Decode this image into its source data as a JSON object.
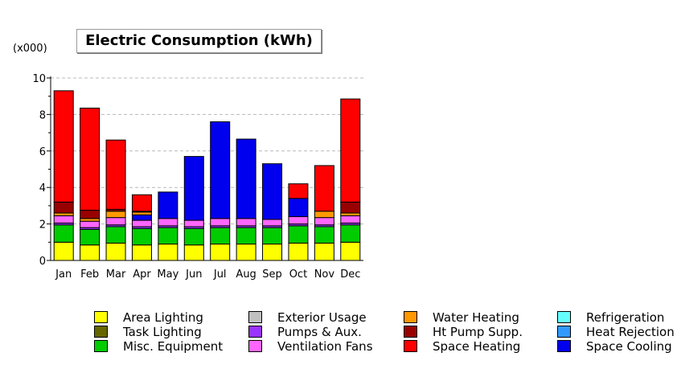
{
  "chart_data": {
    "type": "bar",
    "stacked": true,
    "title": "Electric Consumption (kWh)",
    "unit_label": "(x000)",
    "categories": [
      "Jan",
      "Feb",
      "Mar",
      "Apr",
      "May",
      "Jun",
      "Jul",
      "Aug",
      "Sep",
      "Oct",
      "Nov",
      "Dec"
    ],
    "ylim": [
      0,
      10
    ],
    "yticks": [
      "0",
      "2",
      "4",
      "6",
      "8",
      "10"
    ],
    "grid": "horizontal dashed",
    "legend_position": "bottom",
    "series": [
      {
        "name": "Area Lighting",
        "color": "#ffff00",
        "values": [
          1.0,
          0.85,
          0.95,
          0.85,
          0.9,
          0.85,
          0.9,
          0.9,
          0.9,
          0.95,
          0.95,
          1.0
        ]
      },
      {
        "name": "Task Lighting",
        "color": "#666600",
        "values": [
          0,
          0,
          0,
          0,
          0,
          0,
          0,
          0,
          0,
          0,
          0,
          0
        ]
      },
      {
        "name": "Misc. Equipment",
        "color": "#00cc00",
        "values": [
          0.95,
          0.85,
          0.9,
          0.9,
          0.9,
          0.9,
          0.9,
          0.9,
          0.9,
          0.95,
          0.9,
          0.95
        ]
      },
      {
        "name": "Exterior Usage",
        "color": "#c0c0c0",
        "values": [
          0,
          0,
          0,
          0,
          0,
          0,
          0,
          0,
          0,
          0,
          0,
          0
        ]
      },
      {
        "name": "Pumps & Aux.",
        "color": "#9933ff",
        "values": [
          0.1,
          0.1,
          0.1,
          0.1,
          0.1,
          0.1,
          0.1,
          0.1,
          0.1,
          0.1,
          0.1,
          0.1
        ]
      },
      {
        "name": "Ventilation Fans",
        "color": "#ff66ff",
        "values": [
          0.4,
          0.35,
          0.4,
          0.35,
          0.4,
          0.35,
          0.4,
          0.4,
          0.35,
          0.4,
          0.4,
          0.4
        ]
      },
      {
        "name": "Refrigeration",
        "color": "#66ffff",
        "values": [
          0,
          0,
          0,
          0,
          0,
          0,
          0,
          0,
          0,
          0,
          0,
          0
        ]
      },
      {
        "name": "Heat Rejection",
        "color": "#3399ff",
        "values": [
          0,
          0,
          0,
          0,
          0,
          0,
          0,
          0,
          0,
          0,
          0,
          0
        ]
      },
      {
        "name": "Space Cooling",
        "color": "#0000ee",
        "values": [
          0,
          0,
          0,
          0.3,
          1.45,
          3.5,
          5.3,
          4.35,
          3.05,
          1.0,
          0,
          0
        ]
      },
      {
        "name": "Water Heating",
        "color": "#ff9900",
        "values": [
          0.15,
          0.15,
          0.35,
          0.15,
          0,
          0,
          0,
          0,
          0,
          0,
          0.35,
          0.15
        ]
      },
      {
        "name": "Ht Pump Supp.",
        "color": "#990000",
        "values": [
          0.6,
          0.45,
          0.1,
          0.05,
          0,
          0,
          0,
          0,
          0,
          0,
          0,
          0.6
        ]
      },
      {
        "name": "Space Heating",
        "color": "#ff0000",
        "values": [
          6.1,
          5.6,
          3.8,
          0.9,
          0,
          0,
          0,
          0,
          0,
          0.8,
          2.5,
          5.65
        ]
      }
    ]
  },
  "legend": [
    {
      "name": "Area Lighting",
      "color": "#ffff00"
    },
    {
      "name": "Task Lighting",
      "color": "#666600"
    },
    {
      "name": "Misc. Equipment",
      "color": "#00cc00"
    },
    {
      "name": "Exterior Usage",
      "color": "#c0c0c0"
    },
    {
      "name": "Pumps & Aux.",
      "color": "#9933ff"
    },
    {
      "name": "Ventilation Fans",
      "color": "#ff66ff"
    },
    {
      "name": "Water Heating",
      "color": "#ff9900"
    },
    {
      "name": "Ht Pump Supp.",
      "color": "#990000"
    },
    {
      "name": "Space Heating",
      "color": "#ff0000"
    },
    {
      "name": "Refrigeration",
      "color": "#66ffff"
    },
    {
      "name": "Heat Rejection",
      "color": "#3399ff"
    },
    {
      "name": "Space Cooling",
      "color": "#0000ee"
    }
  ]
}
